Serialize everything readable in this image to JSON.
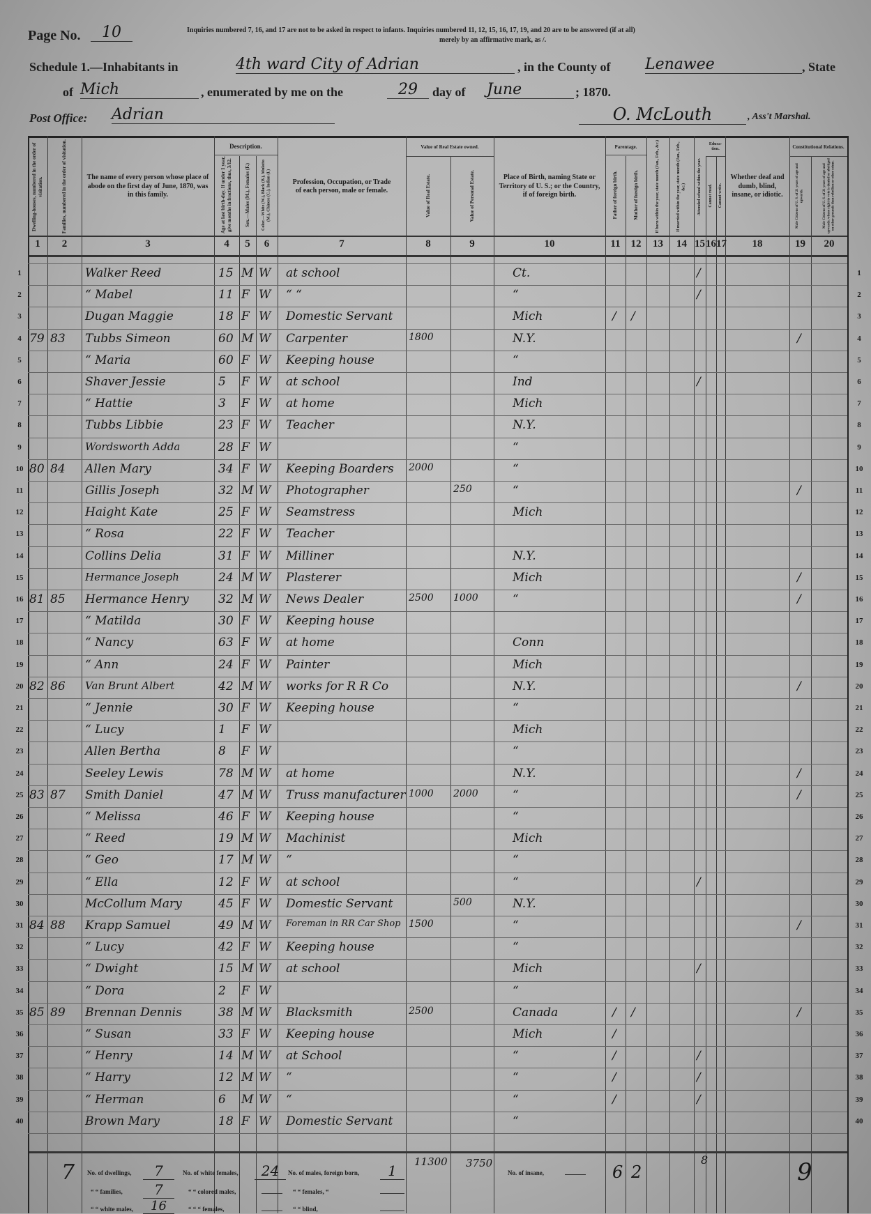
{
  "header": {
    "page_label": "Page No.",
    "page_number": "10",
    "instructions_line1": "Inquiries numbered 7, 16, and 17 are not to be asked in respect to infants.   Inquiries numbered 11, 12, 15, 16, 17, 19, and 20 are to be answered (if at all)",
    "instructions_line2": "merely by an affirmative mark, as /.",
    "schedule_label": "Schedule 1.—Inhabitants in",
    "place": "4th ward City of Adrian",
    "county_label": ", in the County of",
    "county": "Lenawee",
    "state_label": ", State",
    "of_label": "of",
    "state": "Mich",
    "enumerated_label": ", enumerated by me on the",
    "day": "29",
    "day_of_label": "day of",
    "month": "June",
    "year_label": "; 1870.",
    "post_office_label": "Post Office:",
    "post_office": "Adrian",
    "marshal": "O. McLouth",
    "marshal_label": ", Ass't Marshal."
  },
  "columns": {
    "group_description": "Description.",
    "group_value": "Value of Real Estate owned.",
    "group_parentage": "Parentage.",
    "group_education": "Educa-tion.",
    "group_constitutional": "Constitutional Relations.",
    "c1": "Dwelling-houses, numbered in the order of visitation.",
    "c2": "Families, numbered in the order of visitation.",
    "c3": "The name of every person whose place of abode on the first day of June, 1870, was in this family.",
    "c4": "Age at last birth-day. If under 1 year, give months in fractions, thus, 3/12.",
    "c5": "Sex.—Males (M.), Females (F.)",
    "c6": "Color.—White (W.), Black (B.), Mulatto (M.), Chinese (C.), Indian (I.)",
    "c7": "Profession, Occupation, or Trade of each person, male or female.",
    "c8": "Value of Real Estate.",
    "c9": "Value of Personal Estate.",
    "c10": "Place of Birth, naming State or Territory of U. S.; or the Country, if of foreign birth.",
    "c11": "Father of foreign birth.",
    "c12": "Mother of foreign birth.",
    "c13": "If born within the year, state month (Jan., Feb., &c.)",
    "c14": "If married within the year, state month (Jan., Feb., &c.)",
    "c15": "Attended school within the year.",
    "c16": "Cannot read.",
    "c17": "Cannot write.",
    "c18": "Whether deaf and dumb, blind, insane, or idiotic.",
    "c19": "Male Citizens of U. S. of 21 years of age and upwards.",
    "c20": "Male Citizens of U. S. of 21 years of age and upwards, whose right to vote is denied or abridged on other grounds than rebellion or other crime.",
    "numbers": [
      "1",
      "2",
      "3",
      "4",
      "5",
      "6",
      "7",
      "8",
      "9",
      "10",
      "11",
      "12",
      "13",
      "14",
      "15",
      "16",
      "17",
      "18",
      "19",
      "20"
    ]
  },
  "rows": [
    {
      "line": "1",
      "dw": "",
      "fam": "",
      "name": "Walker Reed",
      "age": "15",
      "sex": "M",
      "color": "W",
      "occ": "at school",
      "re": "",
      "pe": "",
      "birth": "Ct.",
      "f": "",
      "m": "",
      "school": "/",
      "citizen": ""
    },
    {
      "line": "2",
      "dw": "",
      "fam": "",
      "name": "“ Mabel",
      "age": "11",
      "sex": "F",
      "color": "W",
      "occ": "“  “",
      "re": "",
      "pe": "",
      "birth": "“",
      "f": "",
      "m": "",
      "school": "/",
      "citizen": ""
    },
    {
      "line": "3",
      "dw": "",
      "fam": "",
      "name": "Dugan Maggie",
      "age": "18",
      "sex": "F",
      "color": "W",
      "occ": "Domestic Servant",
      "re": "",
      "pe": "",
      "birth": "Mich",
      "f": "/",
      "m": "/",
      "school": "",
      "citizen": ""
    },
    {
      "line": "4",
      "dw": "79",
      "fam": "83",
      "name": "Tubbs Simeon",
      "age": "60",
      "sex": "M",
      "color": "W",
      "occ": "Carpenter",
      "re": "1800",
      "pe": "",
      "birth": "N.Y.",
      "f": "",
      "m": "",
      "school": "",
      "citizen": "/"
    },
    {
      "line": "5",
      "dw": "",
      "fam": "",
      "name": "“ Maria",
      "age": "60",
      "sex": "F",
      "color": "W",
      "occ": "Keeping house",
      "re": "",
      "pe": "",
      "birth": "“",
      "f": "",
      "m": "",
      "school": "",
      "citizen": ""
    },
    {
      "line": "6",
      "dw": "",
      "fam": "",
      "name": "Shaver Jessie",
      "age": "5",
      "sex": "F",
      "color": "W",
      "occ": "at school",
      "re": "",
      "pe": "",
      "birth": "Ind",
      "f": "",
      "m": "",
      "school": "/",
      "citizen": ""
    },
    {
      "line": "7",
      "dw": "",
      "fam": "",
      "name": "“ Hattie",
      "age": "3",
      "sex": "F",
      "color": "W",
      "occ": "at home",
      "re": "",
      "pe": "",
      "birth": "Mich",
      "f": "",
      "m": "",
      "school": "",
      "citizen": ""
    },
    {
      "line": "8",
      "dw": "",
      "fam": "",
      "name": "Tubbs Libbie",
      "age": "23",
      "sex": "F",
      "color": "W",
      "occ": "Teacher",
      "re": "",
      "pe": "",
      "birth": "N.Y.",
      "f": "",
      "m": "",
      "school": "",
      "citizen": ""
    },
    {
      "line": "9",
      "dw": "",
      "fam": "",
      "name": "Wordsworth Adda",
      "age": "28",
      "sex": "F",
      "color": "W",
      "occ": "",
      "re": "",
      "pe": "",
      "birth": "“",
      "f": "",
      "m": "",
      "school": "",
      "citizen": ""
    },
    {
      "line": "10",
      "dw": "80",
      "fam": "84",
      "name": "Allen Mary",
      "age": "34",
      "sex": "F",
      "color": "W",
      "occ": "Keeping Boarders",
      "re": "2000",
      "pe": "",
      "birth": "“",
      "f": "",
      "m": "",
      "school": "",
      "citizen": ""
    },
    {
      "line": "11",
      "dw": "",
      "fam": "",
      "name": "Gillis Joseph",
      "age": "32",
      "sex": "M",
      "color": "W",
      "occ": "Photographer",
      "re": "",
      "pe": "250",
      "birth": "“",
      "f": "",
      "m": "",
      "school": "",
      "citizen": "/"
    },
    {
      "line": "12",
      "dw": "",
      "fam": "",
      "name": "Haight Kate",
      "age": "25",
      "sex": "F",
      "color": "W",
      "occ": "Seamstress",
      "re": "",
      "pe": "",
      "birth": "Mich",
      "f": "",
      "m": "",
      "school": "",
      "citizen": ""
    },
    {
      "line": "13",
      "dw": "",
      "fam": "",
      "name": "“ Rosa",
      "age": "22",
      "sex": "F",
      "color": "W",
      "occ": "Teacher",
      "re": "",
      "pe": "",
      "birth": "",
      "f": "",
      "m": "",
      "school": "",
      "citizen": ""
    },
    {
      "line": "14",
      "dw": "",
      "fam": "",
      "name": "Collins Delia",
      "age": "31",
      "sex": "F",
      "color": "W",
      "occ": "Milliner",
      "re": "",
      "pe": "",
      "birth": "N.Y.",
      "f": "",
      "m": "",
      "school": "",
      "citizen": ""
    },
    {
      "line": "15",
      "dw": "",
      "fam": "",
      "name": "Hermance Joseph",
      "age": "24",
      "sex": "M",
      "color": "W",
      "occ": "Plasterer",
      "re": "",
      "pe": "",
      "birth": "Mich",
      "f": "",
      "m": "",
      "school": "",
      "citizen": "/"
    },
    {
      "line": "16",
      "dw": "81",
      "fam": "85",
      "name": "Hermance Henry",
      "age": "32",
      "sex": "M",
      "color": "W",
      "occ": "News Dealer",
      "re": "2500",
      "pe": "1000",
      "birth": "“",
      "f": "",
      "m": "",
      "school": "",
      "citizen": "/"
    },
    {
      "line": "17",
      "dw": "",
      "fam": "",
      "name": "“ Matilda",
      "age": "30",
      "sex": "F",
      "color": "W",
      "occ": "Keeping house",
      "re": "",
      "pe": "",
      "birth": "",
      "f": "",
      "m": "",
      "school": "",
      "citizen": ""
    },
    {
      "line": "18",
      "dw": "",
      "fam": "",
      "name": "“ Nancy",
      "age": "63",
      "sex": "F",
      "color": "W",
      "occ": "at home",
      "re": "",
      "pe": "",
      "birth": "Conn",
      "f": "",
      "m": "",
      "school": "",
      "citizen": ""
    },
    {
      "line": "19",
      "dw": "",
      "fam": "",
      "name": "“ Ann",
      "age": "24",
      "sex": "F",
      "color": "W",
      "occ": "Painter",
      "re": "",
      "pe": "",
      "birth": "Mich",
      "f": "",
      "m": "",
      "school": "",
      "citizen": ""
    },
    {
      "line": "20",
      "dw": "82",
      "fam": "86",
      "name": "Van Brunt Albert",
      "age": "42",
      "sex": "M",
      "color": "W",
      "occ": "works for R R Co",
      "re": "",
      "pe": "",
      "birth": "N.Y.",
      "f": "",
      "m": "",
      "school": "",
      "citizen": "/"
    },
    {
      "line": "21",
      "dw": "",
      "fam": "",
      "name": "“ Jennie",
      "age": "30",
      "sex": "F",
      "color": "W",
      "occ": "Keeping house",
      "re": "",
      "pe": "",
      "birth": "“",
      "f": "",
      "m": "",
      "school": "",
      "citizen": ""
    },
    {
      "line": "22",
      "dw": "",
      "fam": "",
      "name": "“ Lucy",
      "age": "1",
      "sex": "F",
      "color": "W",
      "occ": "",
      "re": "",
      "pe": "",
      "birth": "Mich",
      "f": "",
      "m": "",
      "school": "",
      "citizen": ""
    },
    {
      "line": "23",
      "dw": "",
      "fam": "",
      "name": "Allen Bertha",
      "age": "8",
      "sex": "F",
      "color": "W",
      "occ": "",
      "re": "",
      "pe": "",
      "birth": "“",
      "f": "",
      "m": "",
      "school": "",
      "citizen": ""
    },
    {
      "line": "24",
      "dw": "",
      "fam": "",
      "name": "Seeley Lewis",
      "age": "78",
      "sex": "M",
      "color": "W",
      "occ": "at home",
      "re": "",
      "pe": "",
      "birth": "N.Y.",
      "f": "",
      "m": "",
      "school": "",
      "citizen": "/"
    },
    {
      "line": "25",
      "dw": "83",
      "fam": "87",
      "name": "Smith Daniel",
      "age": "47",
      "sex": "M",
      "color": "W",
      "occ": "Truss manufacturer",
      "re": "1000",
      "pe": "2000",
      "birth": "“",
      "f": "",
      "m": "",
      "school": "",
      "citizen": "/"
    },
    {
      "line": "26",
      "dw": "",
      "fam": "",
      "name": "“ Melissa",
      "age": "46",
      "sex": "F",
      "color": "W",
      "occ": "Keeping house",
      "re": "",
      "pe": "",
      "birth": "“",
      "f": "",
      "m": "",
      "school": "",
      "citizen": ""
    },
    {
      "line": "27",
      "dw": "",
      "fam": "",
      "name": "“ Reed",
      "age": "19",
      "sex": "M",
      "color": "W",
      "occ": "Machinist",
      "re": "",
      "pe": "",
      "birth": "Mich",
      "f": "",
      "m": "",
      "school": "",
      "citizen": ""
    },
    {
      "line": "28",
      "dw": "",
      "fam": "",
      "name": "“ Geo",
      "age": "17",
      "sex": "M",
      "color": "W",
      "occ": "“",
      "re": "",
      "pe": "",
      "birth": "“",
      "f": "",
      "m": "",
      "school": "",
      "citizen": ""
    },
    {
      "line": "29",
      "dw": "",
      "fam": "",
      "name": "“ Ella",
      "age": "12",
      "sex": "F",
      "color": "W",
      "occ": "at school",
      "re": "",
      "pe": "",
      "birth": "“",
      "f": "",
      "m": "",
      "school": "/",
      "citizen": ""
    },
    {
      "line": "30",
      "dw": "",
      "fam": "",
      "name": "McCollum Mary",
      "age": "45",
      "sex": "F",
      "color": "W",
      "occ": "Domestic Servant",
      "re": "",
      "pe": "500",
      "birth": "N.Y.",
      "f": "",
      "m": "",
      "school": "",
      "citizen": ""
    },
    {
      "line": "31",
      "dw": "84",
      "fam": "88",
      "name": "Krapp Samuel",
      "age": "49",
      "sex": "M",
      "color": "W",
      "occ": "Foreman in RR Car Shop",
      "re": "1500",
      "pe": "",
      "birth": "“",
      "f": "",
      "m": "",
      "school": "",
      "citizen": "/"
    },
    {
      "line": "32",
      "dw": "",
      "fam": "",
      "name": "“ Lucy",
      "age": "42",
      "sex": "F",
      "color": "W",
      "occ": "Keeping house",
      "re": "",
      "pe": "",
      "birth": "“",
      "f": "",
      "m": "",
      "school": "",
      "citizen": ""
    },
    {
      "line": "33",
      "dw": "",
      "fam": "",
      "name": "“ Dwight",
      "age": "15",
      "sex": "M",
      "color": "W",
      "occ": "at school",
      "re": "",
      "pe": "",
      "birth": "Mich",
      "f": "",
      "m": "",
      "school": "/",
      "citizen": ""
    },
    {
      "line": "34",
      "dw": "",
      "fam": "",
      "name": "“ Dora",
      "age": "2",
      "sex": "F",
      "color": "W",
      "occ": "",
      "re": "",
      "pe": "",
      "birth": "“",
      "f": "",
      "m": "",
      "school": "",
      "citizen": ""
    },
    {
      "line": "35",
      "dw": "85",
      "fam": "89",
      "name": "Brennan Dennis",
      "age": "38",
      "sex": "M",
      "color": "W",
      "occ": "Blacksmith",
      "re": "2500",
      "pe": "",
      "birth": "Canada",
      "f": "/",
      "m": "/",
      "school": "",
      "citizen": "/"
    },
    {
      "line": "36",
      "dw": "",
      "fam": "",
      "name": "“ Susan",
      "age": "33",
      "sex": "F",
      "color": "W",
      "occ": "Keeping house",
      "re": "",
      "pe": "",
      "birth": "Mich",
      "f": "/",
      "m": "",
      "school": "",
      "citizen": ""
    },
    {
      "line": "37",
      "dw": "",
      "fam": "",
      "name": "“ Henry",
      "age": "14",
      "sex": "M",
      "color": "W",
      "occ": "at School",
      "re": "",
      "pe": "",
      "birth": "“",
      "f": "/",
      "m": "",
      "school": "/",
      "citizen": ""
    },
    {
      "line": "38",
      "dw": "",
      "fam": "",
      "name": "“ Harry",
      "age": "12",
      "sex": "M",
      "color": "W",
      "occ": "“",
      "re": "",
      "pe": "",
      "birth": "“",
      "f": "/",
      "m": "",
      "school": "/",
      "citizen": ""
    },
    {
      "line": "39",
      "dw": "",
      "fam": "",
      "name": "“ Herman",
      "age": "6",
      "sex": "M",
      "color": "W",
      "occ": "“",
      "re": "",
      "pe": "",
      "birth": "“",
      "f": "/",
      "m": "",
      "school": "/",
      "citizen": ""
    },
    {
      "line": "40",
      "dw": "",
      "fam": "",
      "name": "Brown Mary",
      "age": "18",
      "sex": "F",
      "color": "W",
      "occ": "Domestic Servant",
      "re": "",
      "pe": "",
      "birth": "“",
      "f": "",
      "m": "",
      "school": "",
      "citizen": ""
    }
  ],
  "totals": {
    "families_mark": "7",
    "dwellings_label": "No. of dwellings,",
    "dwellings": "7",
    "families_label": "“ “ families,",
    "families": "7",
    "white_males_label": "“ “ white males,",
    "white_males": "16",
    "white_females_label": "No. of white females,",
    "white_females": "24",
    "colored_males_label": "“ “ colored males,",
    "colored_females_label": "“ “ “ females,",
    "foreign_males_label": "No. of males, foreign born,",
    "foreign_males": "1",
    "foreign_females_label": "“ “ females, “",
    "blind_label": "“ “ blind,",
    "real_estate": "11300",
    "personal_estate": "3750",
    "insane_label": "No. of insane,",
    "father_foreign": "6",
    "mother_foreign": "2",
    "school": "8",
    "citizens": "9"
  }
}
